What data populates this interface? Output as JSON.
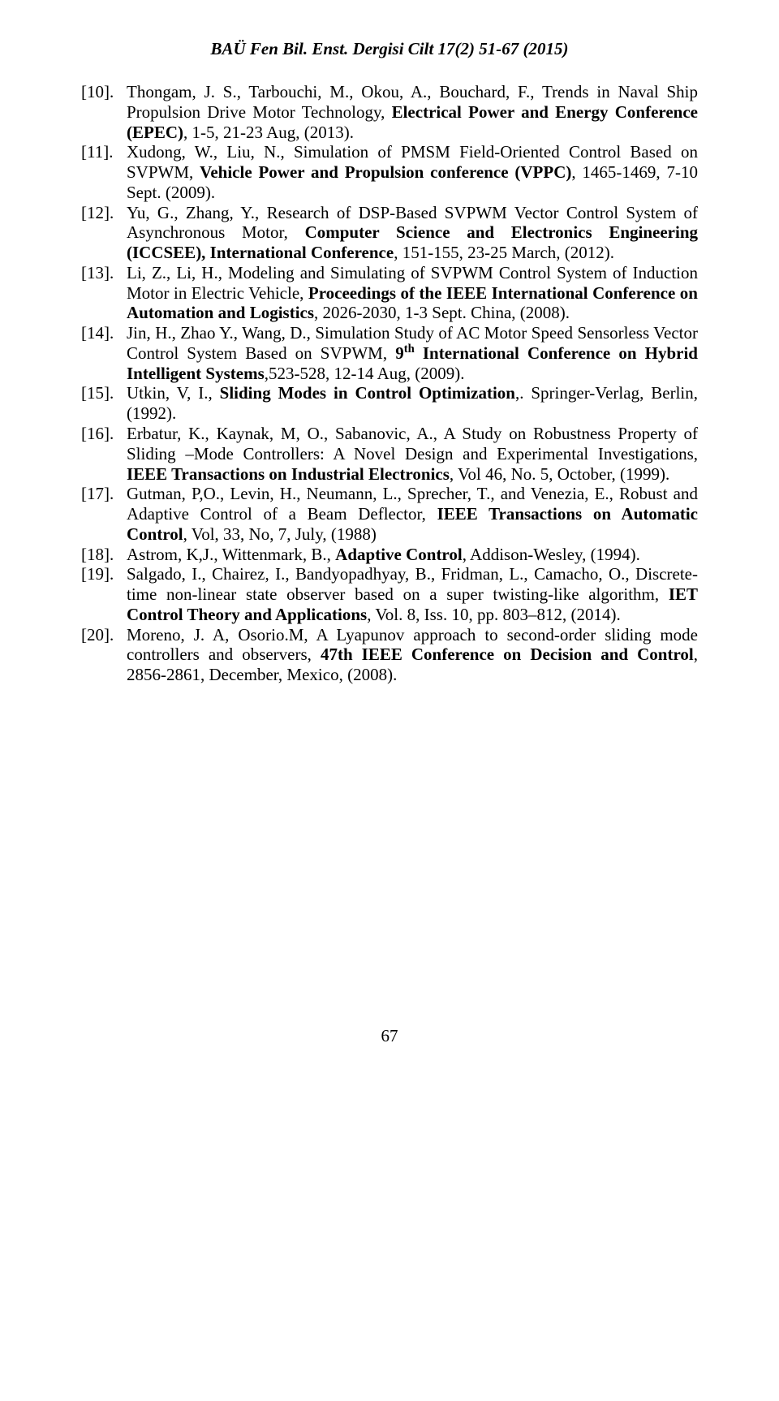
{
  "header": "BAÜ Fen Bil. Enst. Dergisi Cilt 17(2) 51-67 (2015)",
  "page_number": "67",
  "references": [
    {
      "num": "[10].",
      "plain1": "Thongam, J. S., Tarbouchi, M., Okou, A., Bouchard, F., Trends in Naval Ship Propulsion Drive Motor Technology, ",
      "bold1": "Electrical Power and Energy Conference (EPEC)",
      "plain2": ", 1-5, 21-23 Aug, (2013)."
    },
    {
      "num": "[11].",
      "plain1": "Xudong, W., Liu, N., Simulation of PMSM Field-Oriented Control Based on SVPWM, ",
      "bold1": "Vehicle Power and Propulsion conference (VPPC)",
      "plain2": ", 1465-1469, 7-10 Sept. (2009)."
    },
    {
      "num": "[12].",
      "plain1": "Yu, G., Zhang, Y., Research of DSP-Based SVPWM Vector Control System of Asynchronous Motor, ",
      "bold1": "Computer Science and Electronics Engineering (ICCSEE), International Conference",
      "plain2": ", 151-155, 23-25 March, (2012)."
    },
    {
      "num": "[13].",
      "plain1": "Li, Z., Li, H., Modeling and Simulating of SVPWM Control System of Induction Motor in Electric Vehicle, ",
      "bold1": "Proceedings of the IEEE International Conference on Automation and Logistics",
      "plain2": ", 2026-2030, 1-3 Sept. China, (2008)."
    },
    {
      "num": "[14].",
      "plain1": "Jin, H., Zhao Y., Wang, D., Simulation Study of AC Motor Speed Sensorless Vector Control System Based on SVPWM, ",
      "bold1_pre": "9",
      "bold1_sup": "th",
      "bold1_post": " International Conference on Hybrid Intelligent Systems",
      "plain2": ",523-528, 12-14 Aug, (2009)."
    },
    {
      "num": "[15].",
      "plain1": "Utkin, V, I., ",
      "bold1": "Sliding Modes in Control Optimization",
      "plain2": ",. Springer-Verlag, Berlin, (1992)."
    },
    {
      "num": "[16].",
      "plain1": "Erbatur, K., Kaynak, M, O., Sabanovic, A., A Study on Robustness Property of Sliding –Mode Controllers: A Novel Design and Experimental Investigations, ",
      "bold1": "IEEE Transactions on Industrial Electronics",
      "plain2": ", Vol 46, No. 5, October, (1999)."
    },
    {
      "num": "[17].",
      "plain1": "Gutman, P,O., Levin, H., Neumann, L., Sprecher, T., and Venezia, E., Robust and Adaptive Control of a Beam Deflector, ",
      "bold1": "IEEE Transactions on Automatic Control",
      "plain2": ", Vol, 33, No, 7, July, (1988)"
    },
    {
      "num": "[18].",
      "plain1": "Astrom, K,J., Wittenmark, B., ",
      "bold1": "Adaptive Control",
      "plain2": ", Addison-Wesley, (1994)."
    },
    {
      "num": "[19].",
      "plain1": "Salgado, I., Chairez, I., Bandyopadhyay, B., Fridman, L., Camacho, O., Discrete-time non-linear state observer based on a super twisting-like algorithm, ",
      "bold1": "IET Control Theory and Applications",
      "plain2": ", Vol. 8, Iss. 10, pp. 803–812, (2014)."
    },
    {
      "num": "[20].",
      "plain1": "Moreno, J. A, Osorio.M, A Lyapunov approach to second-order sliding mode controllers and observers, ",
      "bold1": "47th IEEE Conference on Decision and Control",
      "plain2": ", 2856-2861, December, Mexico, (2008)."
    }
  ]
}
